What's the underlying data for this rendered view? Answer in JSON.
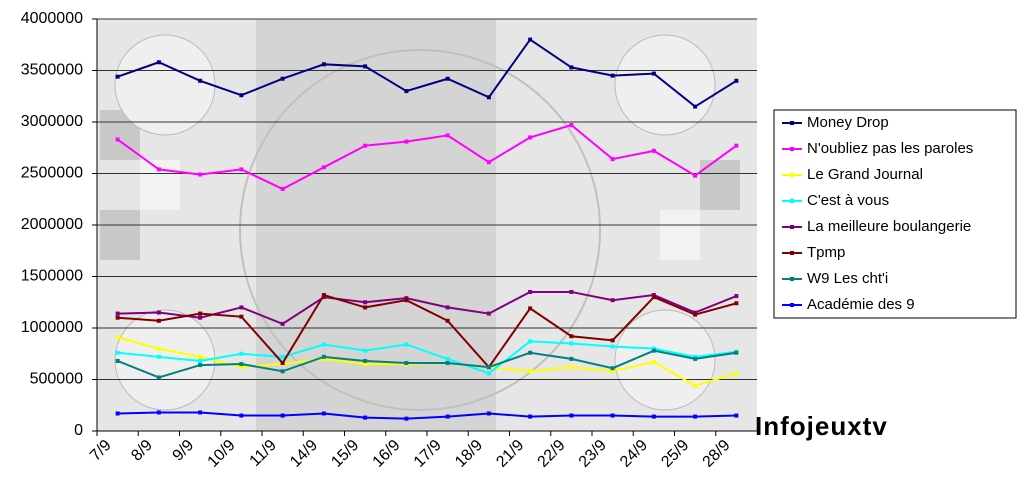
{
  "chart_data": {
    "type": "line",
    "annotation": "Infojeuxtv",
    "categories": [
      "7/9",
      "8/9",
      "9/9",
      "10/9",
      "11/9",
      "14/9",
      "15/9",
      "16/9",
      "17/9",
      "18/9",
      "21/9",
      "22/9",
      "23/9",
      "24/9",
      "25/9",
      "28/9"
    ],
    "series": [
      {
        "name": "Money Drop",
        "color": "#000080",
        "values": [
          3440000,
          3580000,
          3400000,
          3260000,
          3420000,
          3560000,
          3540000,
          3300000,
          3420000,
          3240000,
          3800000,
          3530000,
          3450000,
          3470000,
          3150000,
          3400000
        ]
      },
      {
        "name": "N'oubliez pas les paroles",
        "color": "#ff00ff",
        "values": [
          2830000,
          2540000,
          2490000,
          2540000,
          2350000,
          2560000,
          2770000,
          2810000,
          2870000,
          2610000,
          2850000,
          2970000,
          2640000,
          2720000,
          2480000,
          2770000
        ]
      },
      {
        "name": "Le Grand Journal",
        "color": "#ffff00",
        "values": [
          910000,
          800000,
          720000,
          620000,
          650000,
          700000,
          650000,
          650000,
          660000,
          620000,
          580000,
          620000,
          580000,
          670000,
          440000,
          560000
        ]
      },
      {
        "name": "C'est à vous",
        "color": "#00ffff",
        "values": [
          760000,
          720000,
          680000,
          750000,
          720000,
          840000,
          780000,
          840000,
          700000,
          560000,
          870000,
          850000,
          820000,
          800000,
          720000,
          770000
        ]
      },
      {
        "name": "La meilleure boulangerie",
        "color": "#800080",
        "values": [
          1140000,
          1150000,
          1100000,
          1200000,
          1040000,
          1300000,
          1250000,
          1290000,
          1200000,
          1140000,
          1350000,
          1350000,
          1270000,
          1320000,
          1150000,
          1310000
        ]
      },
      {
        "name": "Tpmp",
        "color": "#800000",
        "values": [
          1100000,
          1070000,
          1140000,
          1110000,
          660000,
          1320000,
          1200000,
          1270000,
          1070000,
          620000,
          1190000,
          920000,
          880000,
          1300000,
          1130000,
          1240000
        ]
      },
      {
        "name": "W9 Les cht'i",
        "color": "#008080",
        "values": [
          680000,
          520000,
          640000,
          650000,
          580000,
          720000,
          680000,
          660000,
          660000,
          620000,
          760000,
          700000,
          610000,
          780000,
          700000,
          760000
        ]
      },
      {
        "name": "Académie des 9",
        "color": "#0000ff",
        "values": [
          170000,
          180000,
          180000,
          150000,
          150000,
          170000,
          130000,
          120000,
          140000,
          170000,
          140000,
          150000,
          150000,
          140000,
          140000,
          150000
        ]
      }
    ],
    "ylim": [
      0,
      4000000
    ],
    "yticks": [
      0,
      500000,
      1000000,
      1500000,
      2000000,
      2500000,
      3000000,
      3500000,
      4000000
    ],
    "grid": true
  }
}
